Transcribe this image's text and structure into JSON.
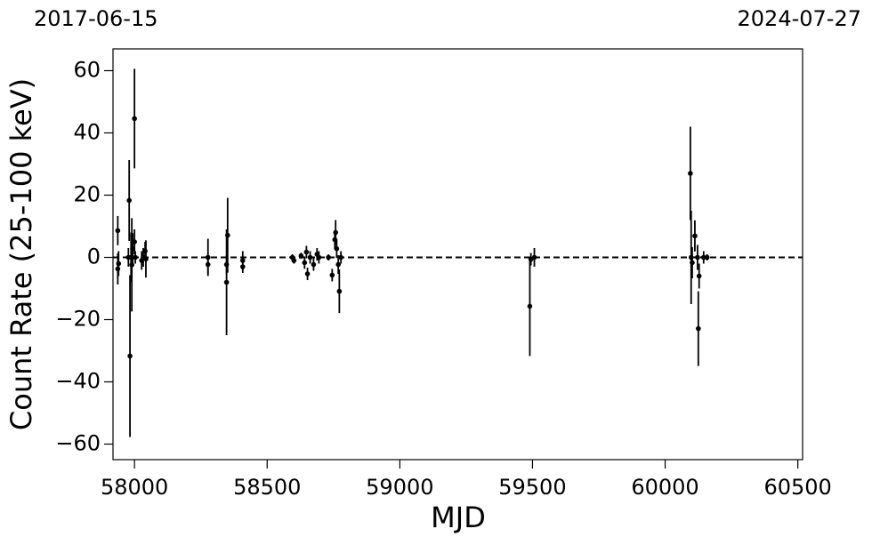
{
  "chart_data": {
    "type": "errorbar",
    "x_label": "MJD",
    "y_label": "Count Rate (25-100 keV)",
    "annotations": [
      "2017-06-15",
      "2024-07-27"
    ],
    "xlim": [
      57919,
      60518
    ],
    "ylim": [
      -65,
      67
    ],
    "xticks": [
      58000,
      58500,
      59000,
      59500,
      60000,
      60500
    ],
    "yticks": [
      -60,
      -40,
      -20,
      0,
      20,
      40,
      60
    ],
    "yticks_labels_note_free": true,
    "reference_line": {
      "value": 0,
      "style": "dashed"
    },
    "color": "#000000",
    "x": [
      57937,
      57937,
      57940,
      57977,
      57980,
      57983,
      57987,
      57990,
      57993,
      58000,
      58000,
      58003,
      58027,
      58033,
      58040,
      58043,
      58277,
      58277,
      58347,
      58347,
      58351,
      58408,
      58408,
      58595,
      58601,
      58628,
      58641,
      58648,
      58652,
      58662,
      58675,
      58688,
      58695,
      58731,
      58745,
      58755,
      58758,
      58762,
      58768,
      58772,
      58778,
      59490,
      59494,
      59507,
      60095,
      60098,
      60102,
      60112,
      60122,
      60125,
      60128,
      60145,
      60158
    ],
    "values": [
      8.6,
      -3.7,
      -2,
      0,
      18.3,
      -31.7,
      0,
      -2.4,
      2.8,
      44.6,
      5,
      0,
      -1,
      0,
      2,
      -0.5,
      0,
      -2.3,
      -8,
      -2.3,
      7.1,
      -1,
      -3,
      0,
      -1,
      0.5,
      -1.7,
      1.7,
      -5.3,
      0,
      -2.3,
      1,
      0,
      0,
      -5.7,
      5.7,
      8,
      2.8,
      -2.3,
      -10.9,
      0,
      -15.7,
      -0.6,
      0,
      27,
      0,
      -1.7,
      6.9,
      0,
      -22.9,
      -6,
      0,
      0
    ],
    "errors": [
      4.7,
      5,
      4,
      3,
      13,
      26,
      8,
      15,
      5,
      16,
      4,
      2,
      3,
      3,
      3,
      6,
      6,
      3,
      17,
      3,
      12,
      3,
      2,
      1,
      1,
      1,
      2,
      2,
      2,
      2,
      2,
      2,
      2,
      1,
      2,
      3,
      4,
      3,
      3,
      7,
      2,
      16,
      2,
      3,
      15,
      15,
      5,
      5,
      4,
      12,
      4,
      2,
      1
    ]
  }
}
